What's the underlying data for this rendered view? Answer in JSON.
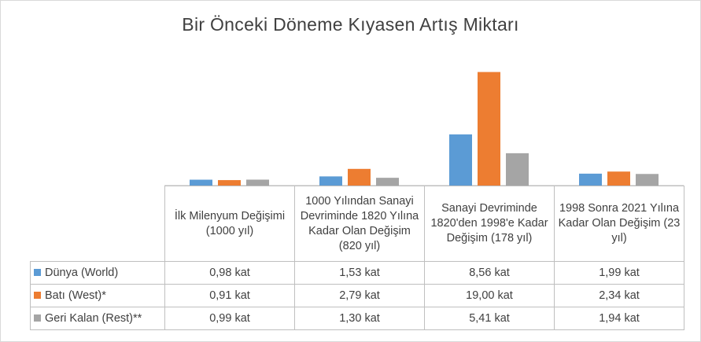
{
  "chart_data": {
    "type": "bar",
    "title": "Bir Önceki Döneme Kıyasen Artış Miktarı",
    "categories": [
      "İlk Milenyum Değişimi (1000 yıl)",
      "1000 Yılından Sanayi Devriminde 1820 Yılına Kadar Olan Değişim (820 yıl)",
      "Sanayi Devriminde 1820'den 1998'e Kadar Değişim (178 yıl)",
      "1998 Sonra 2021 Yılına  Kadar Olan Değişim (23 yıl)"
    ],
    "series": [
      {
        "name": "Dünya (World)",
        "values": [
          0.98,
          1.53,
          8.56,
          1.99
        ],
        "labels": [
          "0,98 kat",
          "1,53 kat",
          "8,56 kat",
          "1,99 kat"
        ],
        "color": "#5b9bd5"
      },
      {
        "name": "Batı (West)*",
        "values": [
          0.91,
          2.79,
          19.0,
          2.34
        ],
        "labels": [
          "0,91 kat",
          "2,79 kat",
          "19,00 kat",
          "2,34 kat"
        ],
        "color": "#ed7d31"
      },
      {
        "name": "Geri Kalan (Rest)**",
        "values": [
          0.99,
          1.3,
          5.41,
          1.94
        ],
        "labels": [
          "0,99 kat",
          "1,30 kat",
          "5,41 kat",
          "1,94 kat"
        ],
        "color": "#a5a5a5"
      }
    ],
    "xlabel": "",
    "ylabel": "",
    "ylim": [
      0,
      20
    ],
    "legend": "data-table",
    "grid": false
  }
}
